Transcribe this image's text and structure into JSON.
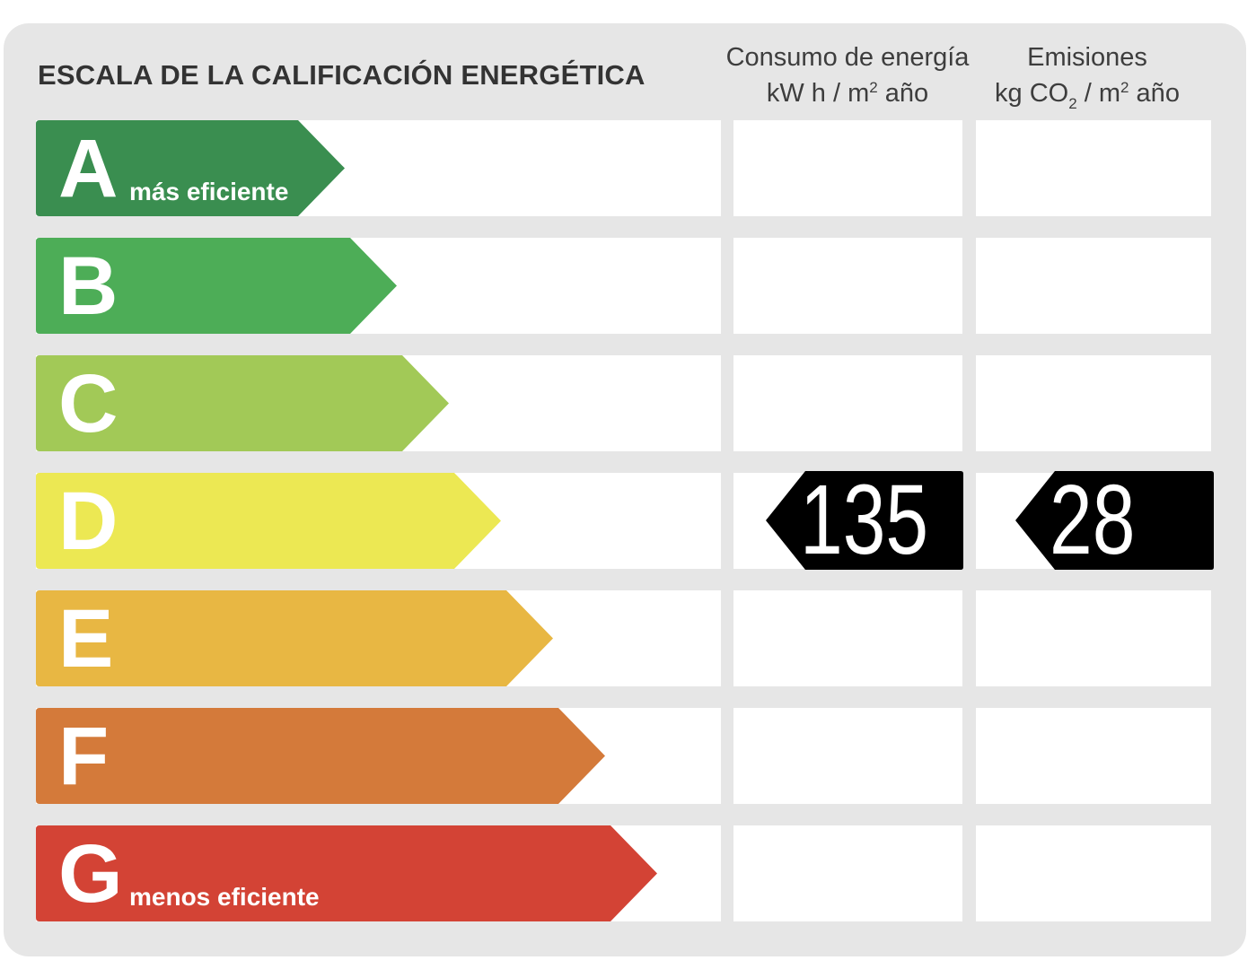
{
  "title": "ESCALA DE LA CALIFICACIÓN ENERGÉTICA",
  "columns": {
    "energy": {
      "line1": "Consumo de energía",
      "unit_pre": "kW h  / m",
      "unit_sup": "2",
      "unit_post": " año"
    },
    "emissions": {
      "line1": "Emisiones",
      "unit_pre": "kg CO",
      "unit_sub": "2",
      "unit_mid": "  / m",
      "unit_sup": "2",
      "unit_post": " año"
    }
  },
  "ratings": [
    {
      "letter": "A",
      "label": "más eficiente",
      "color": "#3a8e50"
    },
    {
      "letter": "B",
      "label": "",
      "color": "#4dad57"
    },
    {
      "letter": "C",
      "label": "",
      "color": "#a2c957"
    },
    {
      "letter": "D",
      "label": "",
      "color": "#ece853"
    },
    {
      "letter": "E",
      "label": "",
      "color": "#e8b743"
    },
    {
      "letter": "F",
      "label": "",
      "color": "#d47a3a"
    },
    {
      "letter": "G",
      "label": "menos eficiente",
      "color": "#d34335"
    }
  ],
  "result": {
    "rating": "D",
    "energy_value": "135",
    "emissions_value": "28",
    "marker_color": "#000000"
  }
}
